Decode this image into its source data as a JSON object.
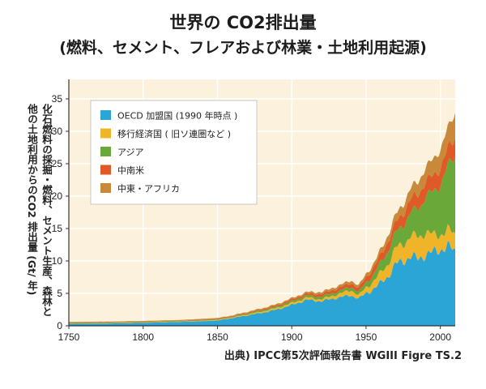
{
  "title": "世界の CO2排出量",
  "subtitle": "(燃料、セメント、フレアおよび林業・土地利用起源)",
  "ylabel_line1": "化石燃料の採掘・燃料、セメント生産、森林と",
  "ylabel_line2": "他の土地利用からのCO2 排出量 (Gt/ 年)",
  "source": "出典) IPCC第5次評価報告書 WGIII Figre TS.2",
  "chart_data": {
    "type": "area",
    "stacked": true,
    "xlim": [
      1750,
      2010
    ],
    "ylim": [
      0,
      38
    ],
    "x_ticks": [
      1750,
      1800,
      1850,
      1900,
      1950,
      2000
    ],
    "y_ticks": [
      0,
      5,
      10,
      15,
      20,
      25,
      30,
      35
    ],
    "grid": true,
    "legend_position": "top-left",
    "x": [
      1750,
      1775,
      1800,
      1825,
      1850,
      1860,
      1870,
      1880,
      1890,
      1900,
      1910,
      1920,
      1930,
      1940,
      1945,
      1950,
      1955,
      1960,
      1965,
      1970,
      1975,
      1980,
      1985,
      1990,
      1995,
      2000,
      2005,
      2010
    ],
    "series": [
      {
        "name": "OECD 加盟国 (1990 年時点 )",
        "color": "#2aa5d6",
        "values": [
          0.3,
          0.35,
          0.45,
          0.6,
          0.8,
          1.2,
          1.6,
          2.0,
          2.5,
          3.2,
          4.0,
          3.8,
          4.3,
          4.7,
          4.2,
          5.0,
          5.7,
          6.6,
          7.7,
          9.5,
          10.0,
          10.7,
          10.3,
          11.0,
          11.3,
          11.8,
          12.2,
          11.5
        ]
      },
      {
        "name": "移行経済国 ( 旧ソ連圏など )",
        "color": "#f0b429",
        "values": [
          0.05,
          0.05,
          0.05,
          0.05,
          0.1,
          0.1,
          0.15,
          0.2,
          0.25,
          0.3,
          0.35,
          0.3,
          0.5,
          0.8,
          0.5,
          0.9,
          1.2,
          1.6,
          2.0,
          2.4,
          2.7,
          3.1,
          3.4,
          3.5,
          2.6,
          2.4,
          2.5,
          2.6
        ]
      },
      {
        "name": "アジア",
        "color": "#6aa83a",
        "values": [
          0.1,
          0.1,
          0.1,
          0.1,
          0.1,
          0.1,
          0.15,
          0.2,
          0.2,
          0.3,
          0.3,
          0.4,
          0.4,
          0.5,
          0.5,
          0.8,
          1.0,
          1.6,
          2.0,
          2.4,
          2.9,
          3.6,
          4.4,
          5.4,
          6.7,
          7.6,
          9.8,
          12.5
        ]
      },
      {
        "name": "中南米",
        "color": "#e05a28",
        "values": [
          0.05,
          0.05,
          0.05,
          0.05,
          0.1,
          0.1,
          0.1,
          0.15,
          0.2,
          0.25,
          0.3,
          0.4,
          0.5,
          0.6,
          0.6,
          0.8,
          1.0,
          1.2,
          1.4,
          1.6,
          1.8,
          2.1,
          2.2,
          2.3,
          2.5,
          2.6,
          2.7,
          2.8
        ]
      },
      {
        "name": "中東・アフリカ",
        "color": "#c88a3a",
        "values": [
          0.1,
          0.1,
          0.1,
          0.1,
          0.1,
          0.1,
          0.15,
          0.15,
          0.2,
          0.2,
          0.25,
          0.3,
          0.35,
          0.4,
          0.4,
          0.5,
          0.6,
          0.8,
          1.0,
          1.2,
          1.4,
          1.7,
          1.9,
          2.2,
          2.5,
          2.8,
          3.2,
          3.7
        ]
      }
    ]
  }
}
